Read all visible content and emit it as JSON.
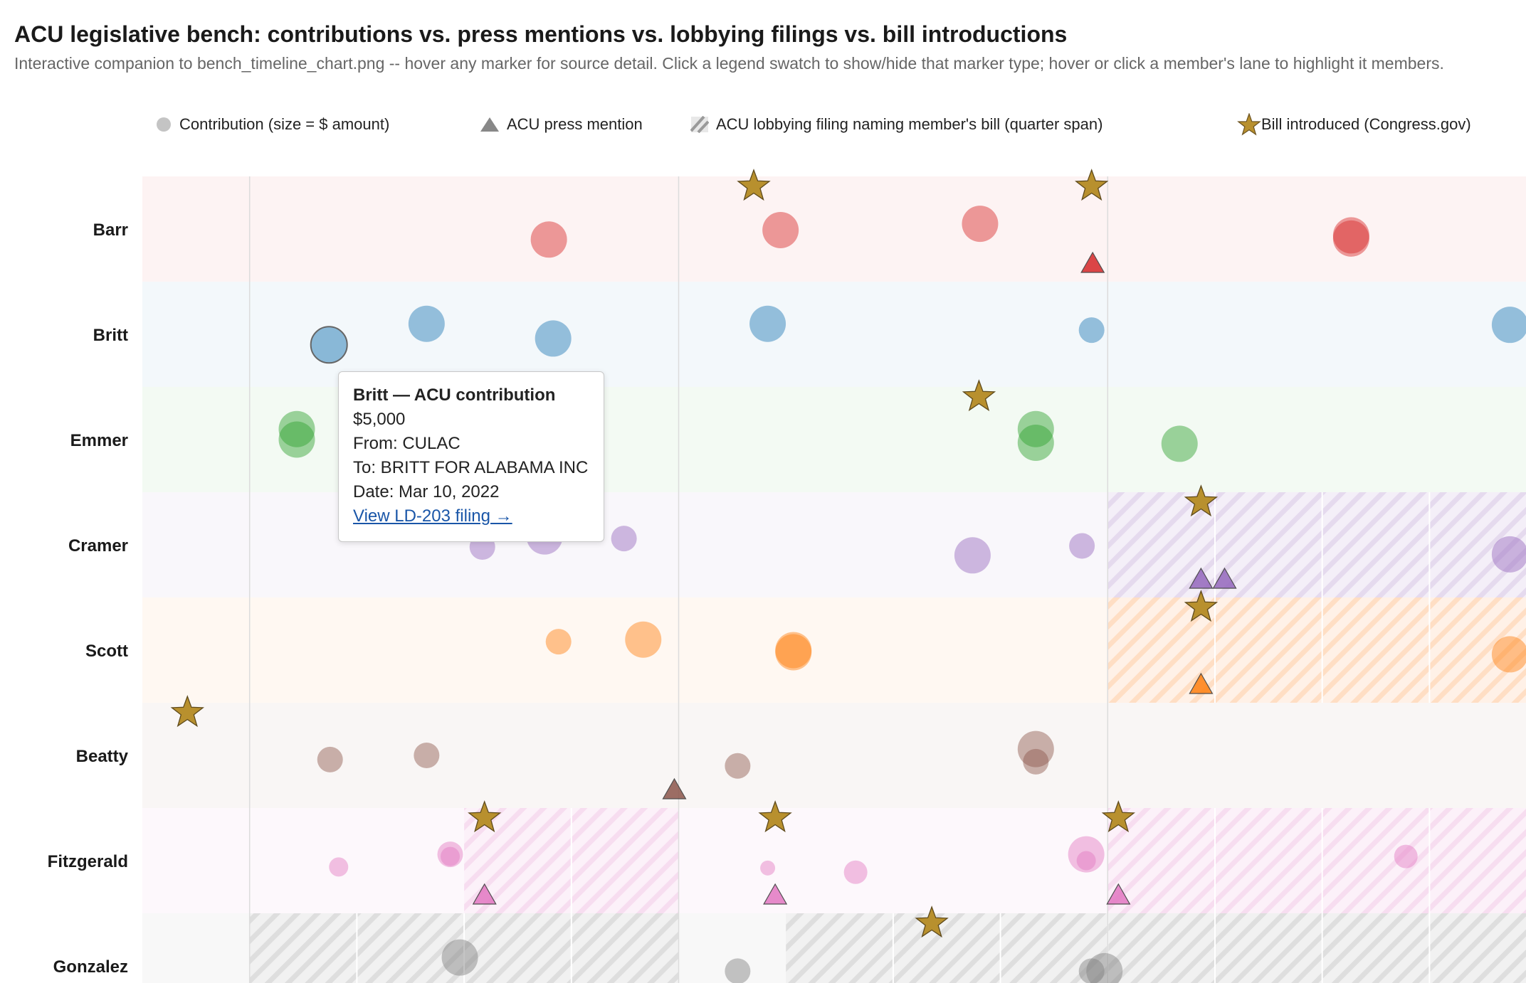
{
  "header": {
    "title": "ACU legislative bench: contributions vs. press mentions vs. lobbying filings vs. bill introductions",
    "subtitle": "Interactive companion to bench_timeline_chart.png -- hover any marker for source detail. Click a legend swatch to show/hide that marker type; hover or click a member's lane to highlight it members."
  },
  "legend": {
    "contribution": "Contribution (size = $ amount)",
    "press": "ACU press mention",
    "lobbying": "ACU lobbying filing naming member's bill (quarter span)",
    "bill": "Bill introduced (Congress.gov)"
  },
  "colors": {
    "Barr": "#d62728",
    "Britt": "#1f77b4",
    "Emmer": "#2ca02c",
    "Cramer": "#9467bd",
    "Scott": "#ff7f0e",
    "Beatty": "#8c564b",
    "Fitzgerald": "#e377c2",
    "Gonzalez": "#7f7f7f",
    "star": "#b8902e"
  },
  "chart_data": {
    "type": "scatter",
    "note_axis": "x in fractional quarter index (quarter gridlines shown, no tick labels visible)",
    "x_range": [
      0,
      12.9
    ],
    "lanes": [
      "Barr",
      "Britt",
      "Emmer",
      "Cramer",
      "Scott",
      "Beatty",
      "Fitzgerald",
      "Gonzalez"
    ],
    "year_lines": [
      1,
      5,
      9
    ],
    "contributions": [
      {
        "member": "Barr",
        "x": 3.79,
        "y": -0.1,
        "r": 17
      },
      {
        "member": "Barr",
        "x": 5.95,
        "y": -0.01,
        "r": 17
      },
      {
        "member": "Barr",
        "x": 7.81,
        "y": 0.05,
        "r": 17
      },
      {
        "member": "Barr",
        "x": 11.27,
        "y": -0.09,
        "r": 17
      },
      {
        "member": "Barr",
        "x": 11.27,
        "y": -0.06,
        "r": 17
      },
      {
        "member": "Britt",
        "x": 1.74,
        "y": -0.1,
        "r": 17,
        "highlight": true
      },
      {
        "member": "Britt",
        "x": 2.65,
        "y": 0.1,
        "r": 17
      },
      {
        "member": "Britt",
        "x": 3.83,
        "y": -0.04,
        "r": 17
      },
      {
        "member": "Britt",
        "x": 5.83,
        "y": 0.1,
        "r": 17
      },
      {
        "member": "Britt",
        "x": 8.85,
        "y": 0.04,
        "r": 12
      },
      {
        "member": "Britt",
        "x": 12.75,
        "y": 0.09,
        "r": 17
      },
      {
        "member": "Emmer",
        "x": 1.44,
        "y": 0.1,
        "r": 17
      },
      {
        "member": "Emmer",
        "x": 1.44,
        "y": 0.0,
        "r": 17
      },
      {
        "member": "Emmer",
        "x": 8.33,
        "y": 0.1,
        "r": 17
      },
      {
        "member": "Emmer",
        "x": 8.33,
        "y": -0.03,
        "r": 17
      },
      {
        "member": "Emmer",
        "x": 9.67,
        "y": -0.04,
        "r": 17
      },
      {
        "member": "Cramer",
        "x": 3.17,
        "y": -0.02,
        "r": 12
      },
      {
        "member": "Cramer",
        "x": 3.75,
        "y": 0.08,
        "r": 17
      },
      {
        "member": "Cramer",
        "x": 4.49,
        "y": 0.06,
        "r": 12
      },
      {
        "member": "Cramer",
        "x": 7.74,
        "y": -0.1,
        "r": 17
      },
      {
        "member": "Cramer",
        "x": 8.76,
        "y": -0.01,
        "r": 12
      },
      {
        "member": "Cramer",
        "x": 12.75,
        "y": -0.09,
        "r": 17
      },
      {
        "member": "Scott",
        "x": 3.88,
        "y": 0.08,
        "r": 12
      },
      {
        "member": "Scott",
        "x": 4.67,
        "y": 0.1,
        "r": 17
      },
      {
        "member": "Scott",
        "x": 6.07,
        "y": 0.0,
        "r": 17
      },
      {
        "member": "Scott",
        "x": 6.07,
        "y": -0.02,
        "r": 17
      },
      {
        "member": "Scott",
        "x": 12.75,
        "y": -0.04,
        "r": 17
      },
      {
        "member": "Beatty",
        "x": 1.75,
        "y": -0.04,
        "r": 12
      },
      {
        "member": "Beatty",
        "x": 2.65,
        "y": 0.0,
        "r": 12
      },
      {
        "member": "Beatty",
        "x": 5.55,
        "y": -0.1,
        "r": 12
      },
      {
        "member": "Beatty",
        "x": 8.33,
        "y": 0.06,
        "r": 17
      },
      {
        "member": "Beatty",
        "x": 8.33,
        "y": -0.06,
        "r": 12
      },
      {
        "member": "Fitzgerald",
        "x": 1.83,
        "y": -0.06,
        "r": 9
      },
      {
        "member": "Fitzgerald",
        "x": 2.87,
        "y": 0.06,
        "r": 12
      },
      {
        "member": "Fitzgerald",
        "x": 2.87,
        "y": 0.04,
        "r": 9
      },
      {
        "member": "Fitzgerald",
        "x": 5.83,
        "y": -0.07,
        "r": 7
      },
      {
        "member": "Fitzgerald",
        "x": 6.65,
        "y": -0.11,
        "r": 11
      },
      {
        "member": "Fitzgerald",
        "x": 8.8,
        "y": 0.06,
        "r": 17
      },
      {
        "member": "Fitzgerald",
        "x": 8.8,
        "y": 0.0,
        "r": 9
      },
      {
        "member": "Fitzgerald",
        "x": 11.78,
        "y": 0.04,
        "r": 11
      },
      {
        "member": "Gonzalez",
        "x": 2.96,
        "y": 0.08,
        "r": 17
      },
      {
        "member": "Gonzalez",
        "x": 5.55,
        "y": -0.05,
        "r": 12
      },
      {
        "member": "Gonzalez",
        "x": 8.85,
        "y": -0.05,
        "r": 12
      },
      {
        "member": "Gonzalez",
        "x": 8.97,
        "y": -0.05,
        "r": 17
      }
    ],
    "press_mentions": [
      {
        "member": "Barr",
        "x": 8.86
      },
      {
        "member": "Cramer",
        "x": 9.87
      },
      {
        "member": "Cramer",
        "x": 10.09
      },
      {
        "member": "Scott",
        "x": 9.87
      },
      {
        "member": "Beatty",
        "x": 4.96
      },
      {
        "member": "Fitzgerald",
        "x": 3.19
      },
      {
        "member": "Fitzgerald",
        "x": 5.9
      },
      {
        "member": "Fitzgerald",
        "x": 9.1
      }
    ],
    "lobbying_spans": [
      {
        "member": "Cramer",
        "start": 9,
        "end": 12.9
      },
      {
        "member": "Scott",
        "start": 9,
        "end": 12.9
      },
      {
        "member": "Fitzgerald",
        "start": 3,
        "end": 5
      },
      {
        "member": "Fitzgerald",
        "start": 9,
        "end": 12.9
      },
      {
        "member": "Gonzalez",
        "start": 1,
        "end": 5
      },
      {
        "member": "Gonzalez",
        "start": 6,
        "end": 12.9
      }
    ],
    "bills": [
      {
        "member": "Barr",
        "x": 5.7
      },
      {
        "member": "Barr",
        "x": 8.85
      },
      {
        "member": "Emmer",
        "x": 7.8
      },
      {
        "member": "Cramer",
        "x": 9.87
      },
      {
        "member": "Scott",
        "x": 9.87
      },
      {
        "member": "Beatty",
        "x": 0.42
      },
      {
        "member": "Fitzgerald",
        "x": 3.19
      },
      {
        "member": "Fitzgerald",
        "x": 5.9
      },
      {
        "member": "Fitzgerald",
        "x": 9.1
      },
      {
        "member": "Gonzalez",
        "x": 7.36
      }
    ]
  },
  "tooltip": {
    "title": "Britt — ACU contribution",
    "amount": "$5,000",
    "from": "From: CULAC",
    "to": "To: BRITT FOR ALABAMA INC",
    "date": "Date: Mar 10, 2022",
    "link": "View LD-203 filing →"
  }
}
